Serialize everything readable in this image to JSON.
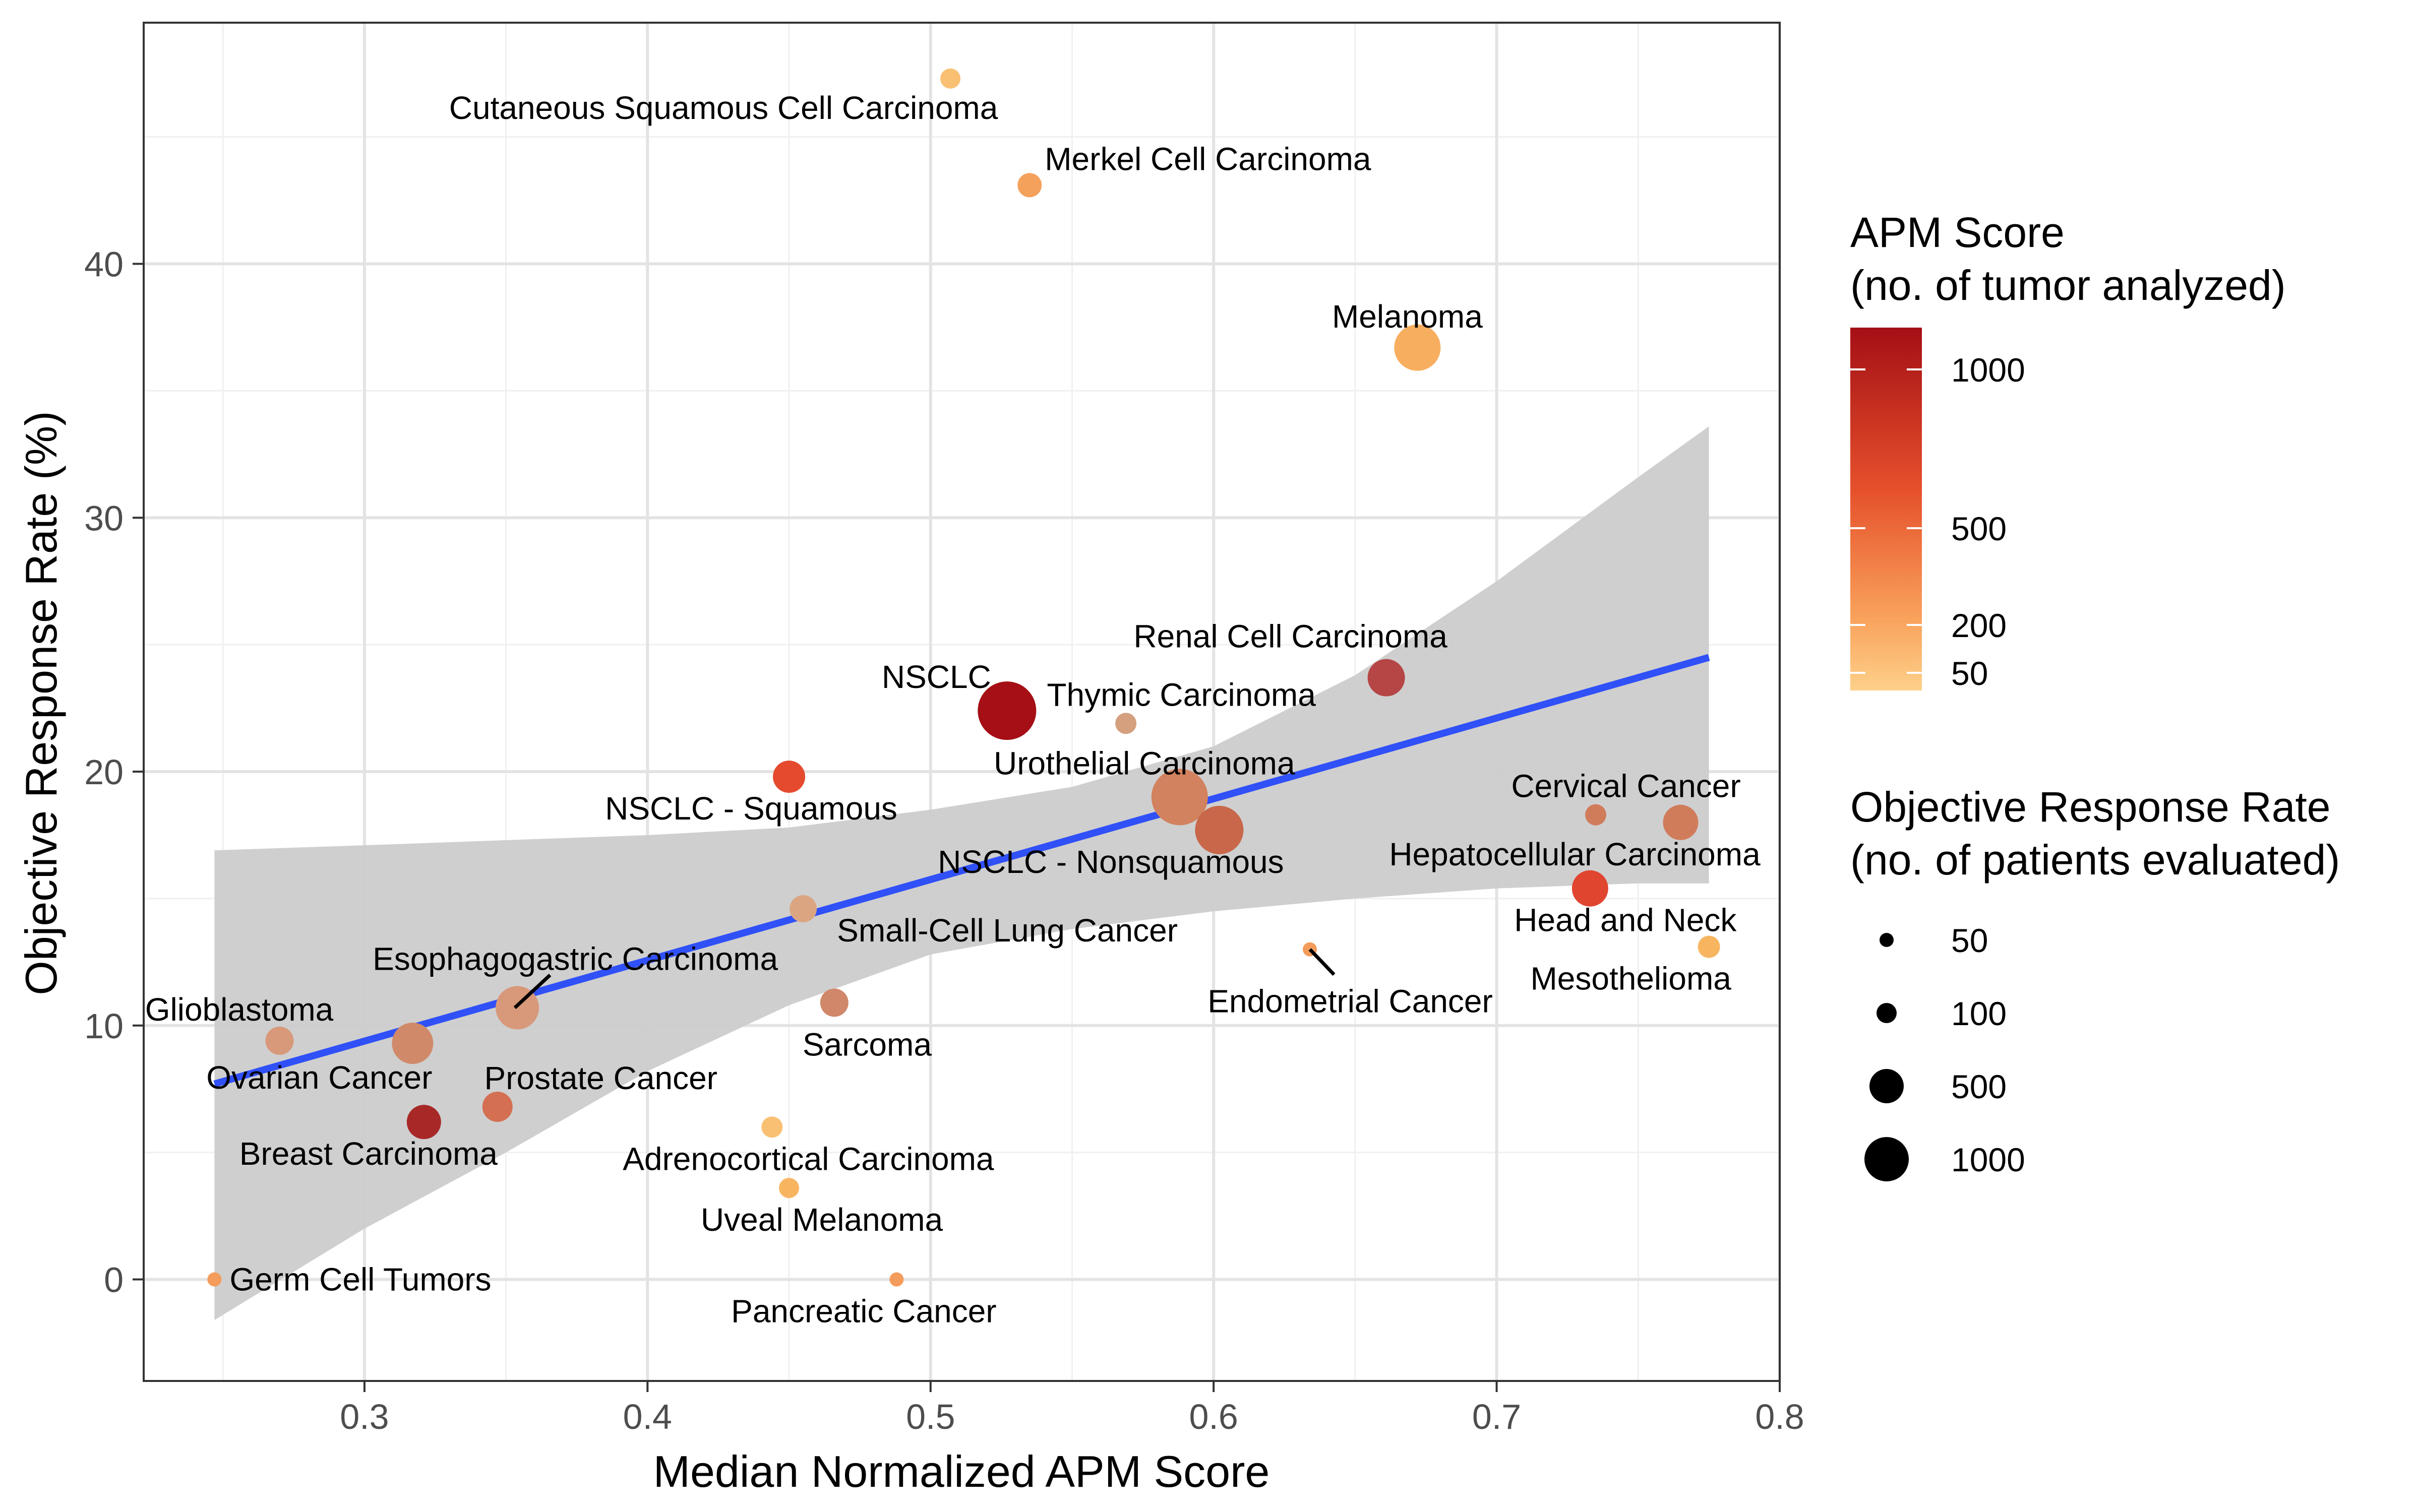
{
  "chart_data": {
    "type": "scatter",
    "xlabel": "Median Normalized APM Score",
    "ylabel": "Objective Response Rate (%)",
    "xlim": [
      0.222,
      0.8
    ],
    "ylim": [
      -4,
      49.5
    ],
    "x_ticks": [
      "0.3",
      "0.4",
      "0.5",
      "0.6",
      "0.7",
      "0.8"
    ],
    "y_ticks": [
      "0",
      "10",
      "20",
      "30",
      "40"
    ],
    "grid": true,
    "legend_position": "right",
    "color_legend": {
      "title": [
        "APM Score",
        "(no. of tumor analyzed)"
      ],
      "labels": [
        "1000",
        "500",
        "200",
        "50"
      ],
      "colors": [
        "#a50f15",
        "#e6512c",
        "#f9a25b",
        "#fdd08a"
      ]
    },
    "size_legend": {
      "title": [
        "Objective Response Rate",
        "(no. of patients evaluated)"
      ],
      "labels": [
        "50",
        "100",
        "500",
        "1000"
      ]
    },
    "trend_line": {
      "x": [
        0.247,
        0.775
      ],
      "y": [
        7.7,
        24.5
      ],
      "color": "#3050f8"
    },
    "confidence_band": {
      "x": [
        0.247,
        0.3,
        0.35,
        0.4,
        0.45,
        0.5,
        0.55,
        0.6,
        0.65,
        0.7,
        0.75,
        0.775
      ],
      "upper": [
        16.9,
        17.1,
        17.3,
        17.5,
        17.8,
        18.5,
        19.4,
        21.0,
        23.8,
        27.5,
        31.6,
        33.6
      ],
      "lower": [
        -1.6,
        2.0,
        5.0,
        8.2,
        10.8,
        12.8,
        13.8,
        14.5,
        15.0,
        15.4,
        15.6,
        15.6
      ],
      "color": "#cccccc"
    },
    "points": [
      {
        "label": "Cutaneous Squamous Cell Carcinoma",
        "x": 0.507,
        "y": 47.3,
        "color": "#f9c073"
      },
      {
        "label": "Merkel Cell Carcinoma",
        "x": 0.535,
        "y": 43.1,
        "color": "#f4a15c"
      },
      {
        "label": "Melanoma",
        "x": 0.672,
        "y": 36.7,
        "color": "#f8ae5f"
      },
      {
        "label": "Renal Cell Carcinoma",
        "x": 0.661,
        "y": 23.7,
        "color": "#b64545"
      },
      {
        "label": "NSCLC",
        "x": 0.527,
        "y": 22.4,
        "color": "#a50f15"
      },
      {
        "label": "Thymic Carcinoma",
        "x": 0.569,
        "y": 21.9,
        "color": "#d4a07e"
      },
      {
        "label": "NSCLC - Squamous",
        "x": 0.45,
        "y": 19.8,
        "color": "#e54a2e"
      },
      {
        "label": "Urothelial Carcinoma",
        "x": 0.588,
        "y": 19.0,
        "color": "#d2825e"
      },
      {
        "label": "NSCLC - Nonsquamous",
        "x": 0.602,
        "y": 17.7,
        "color": "#c8674a"
      },
      {
        "label": "Cervical Cancer",
        "x": 0.735,
        "y": 18.3,
        "color": "#d07c5a"
      },
      {
        "label": "Hepatocellular Carcinoma",
        "x": 0.765,
        "y": 18.0,
        "color": "#d07c5a"
      },
      {
        "label": "Head and Neck",
        "x": 0.733,
        "y": 15.4,
        "color": "#e04530"
      },
      {
        "label": "Mesothelioma",
        "x": 0.775,
        "y": 13.1,
        "color": "#f8b560"
      },
      {
        "label": "Endometrial Cancer",
        "x": 0.634,
        "y": 13.0,
        "color": "#f49c5b"
      },
      {
        "label": "Small-Cell Lung Cancer",
        "x": 0.455,
        "y": 14.6,
        "color": "#dca582"
      },
      {
        "label": "Sarcoma",
        "x": 0.466,
        "y": 10.9,
        "color": "#d0876a"
      },
      {
        "label": "Esophagogastric Carcinoma",
        "x": 0.354,
        "y": 10.7,
        "color": "#d8987a"
      },
      {
        "label": "Glioblastoma",
        "x": 0.27,
        "y": 9.4,
        "color": "#d8987a"
      },
      {
        "label": "Ovarian Cancer",
        "x": 0.317,
        "y": 9.3,
        "color": "#d08a6a"
      },
      {
        "label": "Prostate Cancer",
        "x": 0.347,
        "y": 6.8,
        "color": "#d46f52"
      },
      {
        "label": "Breast Carcinoma",
        "x": 0.321,
        "y": 6.2,
        "color": "#a82828"
      },
      {
        "label": "Adrenocortical Carcinoma",
        "x": 0.444,
        "y": 6.0,
        "color": "#f9c073"
      },
      {
        "label": "Uveal Melanoma",
        "x": 0.45,
        "y": 3.6,
        "color": "#f8b560"
      },
      {
        "label": "Germ Cell Tumors",
        "x": 0.247,
        "y": 0.0,
        "color": "#f49c5b"
      },
      {
        "label": "Pancreatic Cancer",
        "x": 0.488,
        "y": 0.0,
        "color": "#f49c5b"
      }
    ]
  }
}
